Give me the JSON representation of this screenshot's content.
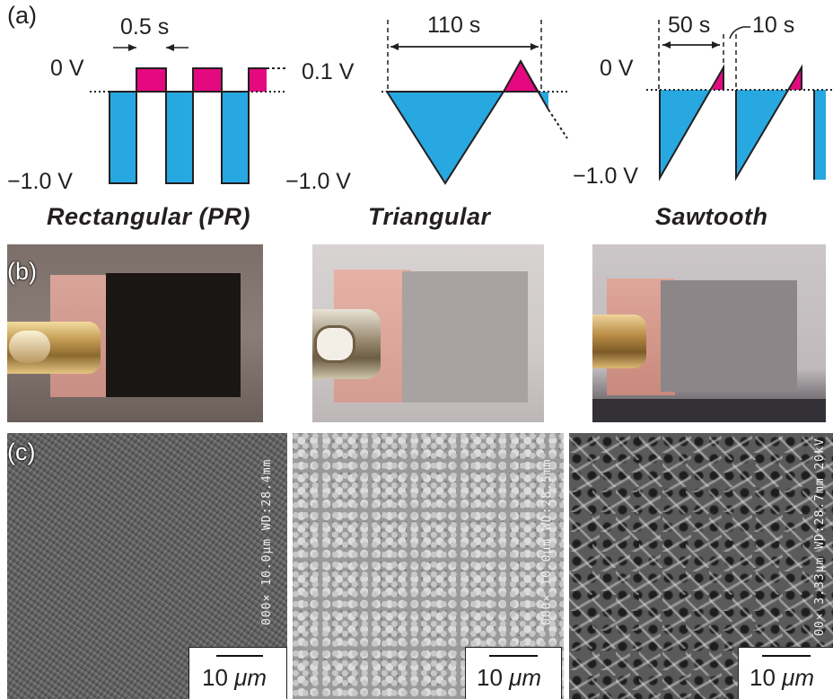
{
  "panels": {
    "a": "(a)",
    "b": "(b)",
    "c": "(c)"
  },
  "waveforms": [
    {
      "title": "Rectangular (PR)",
      "top_voltage": "0 V",
      "bottom_voltage": "−1.0 V",
      "durations": [
        "0.5 s"
      ]
    },
    {
      "title": "Triangular",
      "top_voltage": "0.1 V",
      "bottom_voltage": "−1.0 V",
      "durations": [
        "110 s"
      ]
    },
    {
      "title": "Sawtooth",
      "top_voltage": "0 V",
      "bottom_voltage": "−1.0 V",
      "durations": [
        "50 s",
        "10 s"
      ]
    }
  ],
  "sem_images": [
    {
      "scale_value": "10 ",
      "scale_unit": "μm",
      "meta": "000× 10.0μm WD:28.4mm"
    },
    {
      "scale_value": "10 ",
      "scale_unit": "μm",
      "meta": "000× 10.0μm WD:28.5mm"
    },
    {
      "scale_value": "10 ",
      "scale_unit": "μm",
      "meta": "00× 3.33μm WD:28.7mm 20kV"
    }
  ],
  "colors": {
    "cathodic": "#27a8e0",
    "anodic": "#e5097f",
    "ink": "#231f20"
  }
}
